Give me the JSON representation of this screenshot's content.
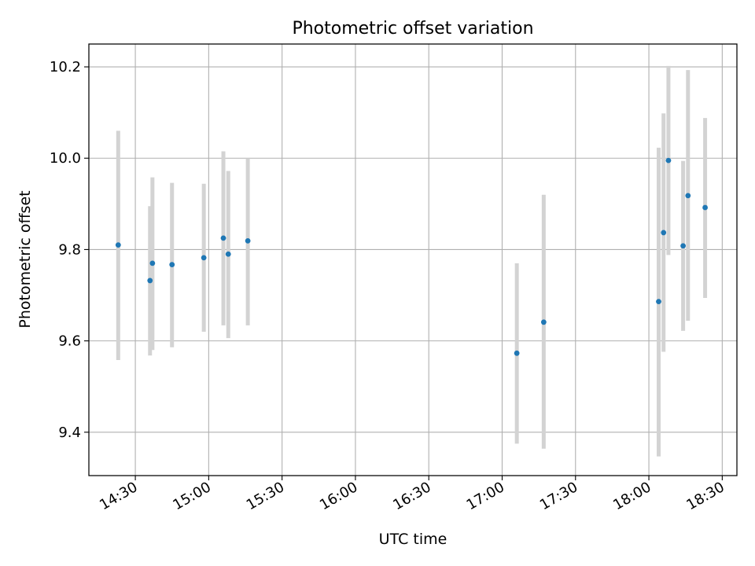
{
  "chart_data": {
    "type": "scatter",
    "title": "Photometric offset variation",
    "xlabel": "UTC time",
    "ylabel": "Photometric offset",
    "x_axis_type": "time",
    "xlim": [
      "14:11",
      "18:36"
    ],
    "ylim": [
      9.305,
      10.25
    ],
    "x_ticks": [
      "14:30",
      "15:00",
      "15:30",
      "16:00",
      "16:30",
      "17:00",
      "17:30",
      "18:00",
      "18:30"
    ],
    "y_ticks": [
      "9.4",
      "9.6",
      "9.8",
      "10.0",
      "10.2"
    ],
    "grid": true,
    "legend": "none",
    "marker_color": "#1f77b4",
    "errorbar_color": "#d3d3d3",
    "points": [
      {
        "time": "14:23",
        "y": 9.81,
        "ylow": 9.558,
        "yhigh": 10.06
      },
      {
        "time": "14:36",
        "y": 9.732,
        "ylow": 9.568,
        "yhigh": 9.895
      },
      {
        "time": "14:37",
        "y": 9.77,
        "ylow": 9.58,
        "yhigh": 9.958
      },
      {
        "time": "14:45",
        "y": 9.767,
        "ylow": 9.586,
        "yhigh": 9.946
      },
      {
        "time": "14:58",
        "y": 9.782,
        "ylow": 9.62,
        "yhigh": 9.944
      },
      {
        "time": "15:06",
        "y": 9.825,
        "ylow": 9.634,
        "yhigh": 10.015
      },
      {
        "time": "15:08",
        "y": 9.79,
        "ylow": 9.606,
        "yhigh": 9.972
      },
      {
        "time": "15:16",
        "y": 9.819,
        "ylow": 9.634,
        "yhigh": 10.0
      },
      {
        "time": "17:06",
        "y": 9.573,
        "ylow": 9.375,
        "yhigh": 9.77
      },
      {
        "time": "17:17",
        "y": 9.641,
        "ylow": 9.364,
        "yhigh": 9.92
      },
      {
        "time": "18:04",
        "y": 9.686,
        "ylow": 9.347,
        "yhigh": 10.023
      },
      {
        "time": "18:06",
        "y": 9.837,
        "ylow": 9.576,
        "yhigh": 10.098
      },
      {
        "time": "18:08",
        "y": 9.995,
        "ylow": 9.788,
        "yhigh": 10.202
      },
      {
        "time": "18:14",
        "y": 9.808,
        "ylow": 9.622,
        "yhigh": 9.994
      },
      {
        "time": "18:16",
        "y": 9.918,
        "ylow": 9.644,
        "yhigh": 10.193
      },
      {
        "time": "18:23",
        "y": 9.892,
        "ylow": 9.694,
        "yhigh": 10.088
      }
    ]
  }
}
